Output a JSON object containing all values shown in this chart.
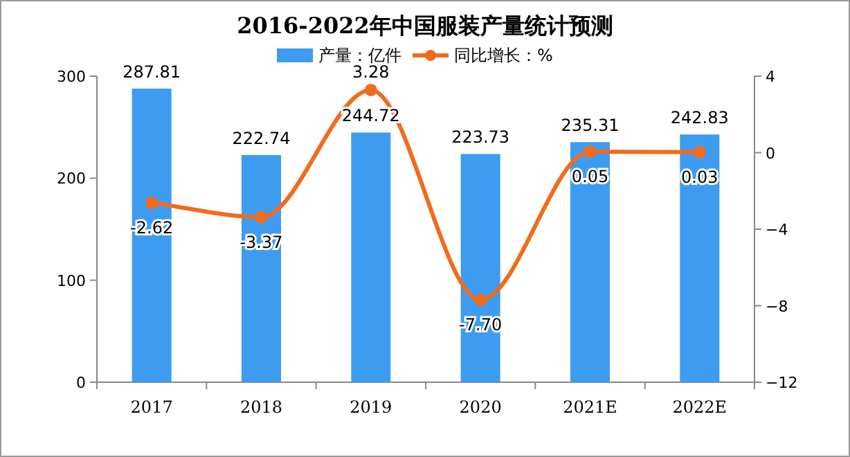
{
  "chart_data": {
    "type": "bar",
    "title": "2016-2022年中国服装产量统计预测",
    "categories": [
      "2017",
      "2018",
      "2019",
      "2020",
      "2021E",
      "2022E"
    ],
    "series": [
      {
        "name": "产量：亿件",
        "color": "#3d9cf0",
        "values": [
          287.81,
          222.74,
          244.72,
          223.73,
          235.31,
          242.83
        ],
        "value_labels": [
          "287.81",
          "222.74",
          "244.72",
          "223.73",
          "235.31",
          "242.83"
        ]
      },
      {
        "name": "同比增长：%",
        "type": "line",
        "axis": "y2",
        "color": "#f26b1d",
        "values": [
          -2.62,
          -3.37,
          3.28,
          -7.7,
          0.05,
          0.03
        ],
        "value_labels": [
          "-2.62",
          "-3.37",
          "3.28",
          "-7.70",
          "0.05",
          "0.03"
        ]
      }
    ],
    "ylim": [
      0,
      300
    ],
    "yticks": [
      0,
      100,
      200,
      300
    ],
    "y2lim": [
      -12,
      4
    ],
    "y2ticks": [
      -12,
      -8,
      -4,
      0,
      4
    ],
    "legend": "top",
    "grid": false,
    "marker": "circle"
  }
}
